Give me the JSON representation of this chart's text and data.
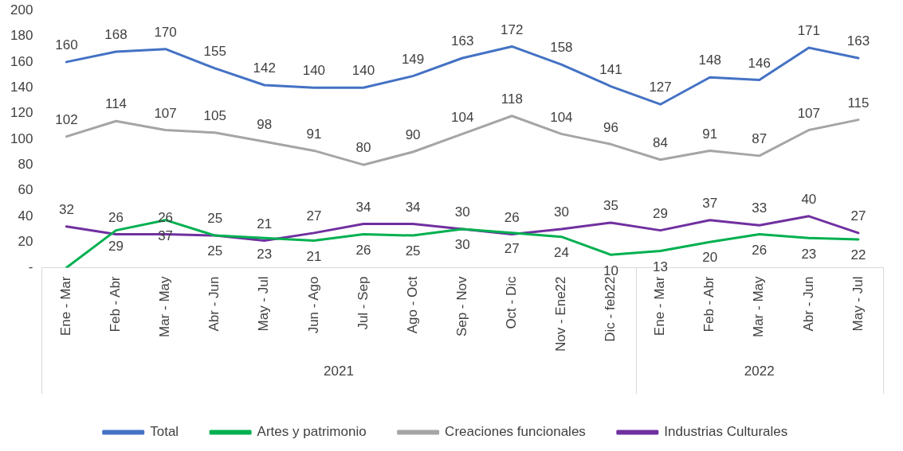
{
  "chart_data": {
    "type": "line",
    "categories": [
      "Ene - Mar",
      "Feb - Abr",
      "Mar - May",
      "Abr - Jun",
      "May - Jul",
      "Jun - Ago",
      "Jul - Sep",
      "Ago - Oct",
      "Sep - Nov",
      "Oct - Dic",
      "Nov - Ene22",
      "Dic - feb22",
      "Ene - Mar",
      "Feb - Abr",
      "Mar - May",
      "Abr - Jun",
      "May - Jul"
    ],
    "series": [
      {
        "name": "Total",
        "color": "#4472c4",
        "values": [
          160,
          168,
          170,
          155,
          142,
          140,
          140,
          149,
          163,
          172,
          158,
          141,
          127,
          148,
          146,
          171,
          163
        ],
        "value_labels": [
          "160",
          "168",
          "170",
          "155",
          "142",
          "140",
          "140",
          "149",
          "163",
          "172",
          "158",
          "141",
          "127",
          "148",
          "146",
          "171",
          "163"
        ]
      },
      {
        "name": "Artes y patrimonio",
        "color": "#00b050",
        "values": [
          0,
          29,
          37,
          25,
          23,
          21,
          26,
          25,
          30,
          27,
          24,
          10,
          13,
          20,
          26,
          23,
          22
        ],
        "value_labels": [
          null,
          "29",
          "37",
          "25",
          "23",
          "21",
          "26",
          "25",
          "30",
          "27",
          "24",
          "10",
          "13",
          "20",
          "26",
          "23",
          "22"
        ]
      },
      {
        "name": "Creaciones funcionales",
        "color": "#a5a5a5",
        "values": [
          102,
          114,
          107,
          105,
          98,
          91,
          80,
          90,
          104,
          118,
          104,
          96,
          84,
          91,
          87,
          107,
          115
        ],
        "value_labels": [
          "102",
          "114",
          "107",
          "105",
          "98",
          "91",
          "80",
          "90",
          "104",
          "118",
          "104",
          "96",
          "84",
          "91",
          "87",
          "107",
          "115"
        ]
      },
      {
        "name": "Industrias Culturales",
        "color": "#7030a0",
        "values": [
          32,
          26,
          26,
          25,
          21,
          27,
          34,
          34,
          30,
          26,
          30,
          35,
          29,
          37,
          33,
          40,
          27
        ],
        "value_labels": [
          "32",
          "26",
          "26",
          "25",
          "21",
          "27",
          "34",
          "34",
          "30",
          "26",
          "30",
          "35",
          "29",
          "37",
          "33",
          "40",
          "27"
        ]
      }
    ],
    "ylim": [
      0,
      200
    ],
    "yticks": [
      {
        "value": 0,
        "label": "-"
      },
      20,
      40,
      60,
      80,
      100,
      120,
      140,
      160,
      180,
      200
    ],
    "grid": false,
    "legend": "bottom",
    "marker": "none",
    "line_style": "solid",
    "annotations": [
      "2021",
      "2022"
    ]
  }
}
